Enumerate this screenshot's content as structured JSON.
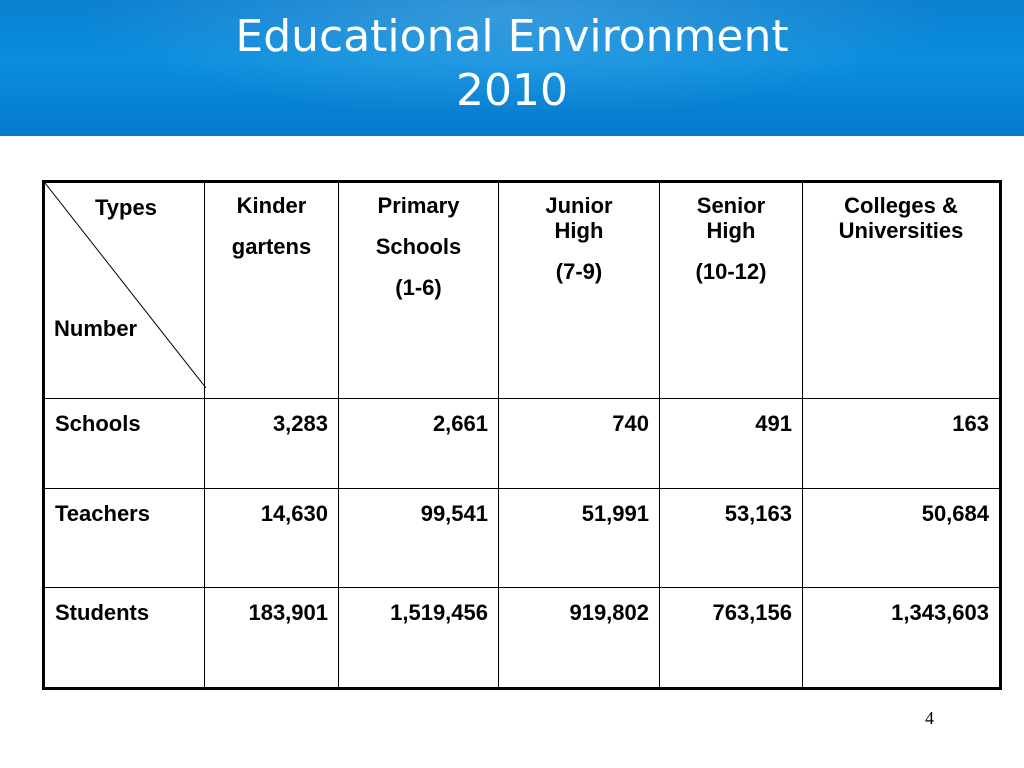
{
  "title": {
    "line1": "Educational Environment",
    "line2": "2010"
  },
  "table": {
    "corner": {
      "top_label": "Types",
      "bottom_label": "Number"
    },
    "columns": [
      {
        "lines": [
          "Kinder",
          "gartens"
        ]
      },
      {
        "lines": [
          "Primary",
          "Schools",
          "(1-6)"
        ]
      },
      {
        "lines": [
          "Junior",
          "High",
          "(7-9)"
        ]
      },
      {
        "lines": [
          "Senior",
          "High",
          "(10-12)"
        ]
      },
      {
        "lines": [
          "Colleges &",
          "Universities"
        ]
      }
    ],
    "rows": [
      {
        "label": "Schools",
        "values": [
          "3,283",
          "2,661",
          "740",
          "491",
          "163"
        ]
      },
      {
        "label": "Teachers",
        "values": [
          "14,630",
          "99,541",
          "51,991",
          "53,163",
          "50,684"
        ]
      },
      {
        "label": "Students",
        "values": [
          "183,901",
          "1,519,456",
          "919,802",
          "763,156",
          "1,343,603"
        ]
      }
    ]
  },
  "page_number": "4",
  "colors": {
    "banner": "#0a8ede",
    "title_text": "#ffffff",
    "table_border": "#000000"
  }
}
